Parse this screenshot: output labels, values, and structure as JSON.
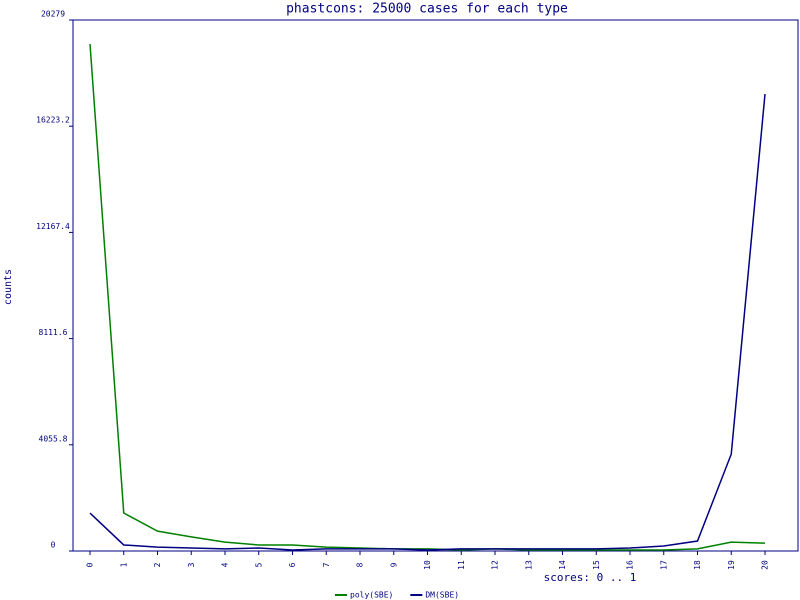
{
  "chart_data": {
    "type": "line",
    "title": "phastcons: 25000 cases for each type",
    "x_label": "scores: 0 .. 1",
    "y_label": "counts",
    "categories": [
      "0",
      "1",
      "2",
      "3",
      "4",
      "5",
      "6",
      "7",
      "8",
      "9",
      "10",
      "11",
      "12",
      "13",
      "14",
      "15",
      "16",
      "17",
      "18",
      "19",
      "20"
    ],
    "series": [
      {
        "name": "poly(SBE)",
        "color": "#008000",
        "values": [
          19360,
          1450,
          760,
          540,
          340,
          230,
          230,
          150,
          115,
          80,
          80,
          40,
          80,
          40,
          40,
          40,
          40,
          40,
          80,
          340,
          300
        ]
      },
      {
        "name": "DM(SBE)",
        "color": "#000080",
        "values": [
          1450,
          230,
          150,
          115,
          80,
          115,
          40,
          80,
          80,
          80,
          40,
          80,
          80,
          80,
          80,
          80,
          115,
          190,
          380,
          3700,
          17450
        ]
      }
    ],
    "ylim": [
      0,
      20279
    ],
    "yticks": [
      0,
      4055.8,
      8111.6,
      12167.4,
      16223.2,
      20279
    ],
    "legend": "bottom"
  }
}
